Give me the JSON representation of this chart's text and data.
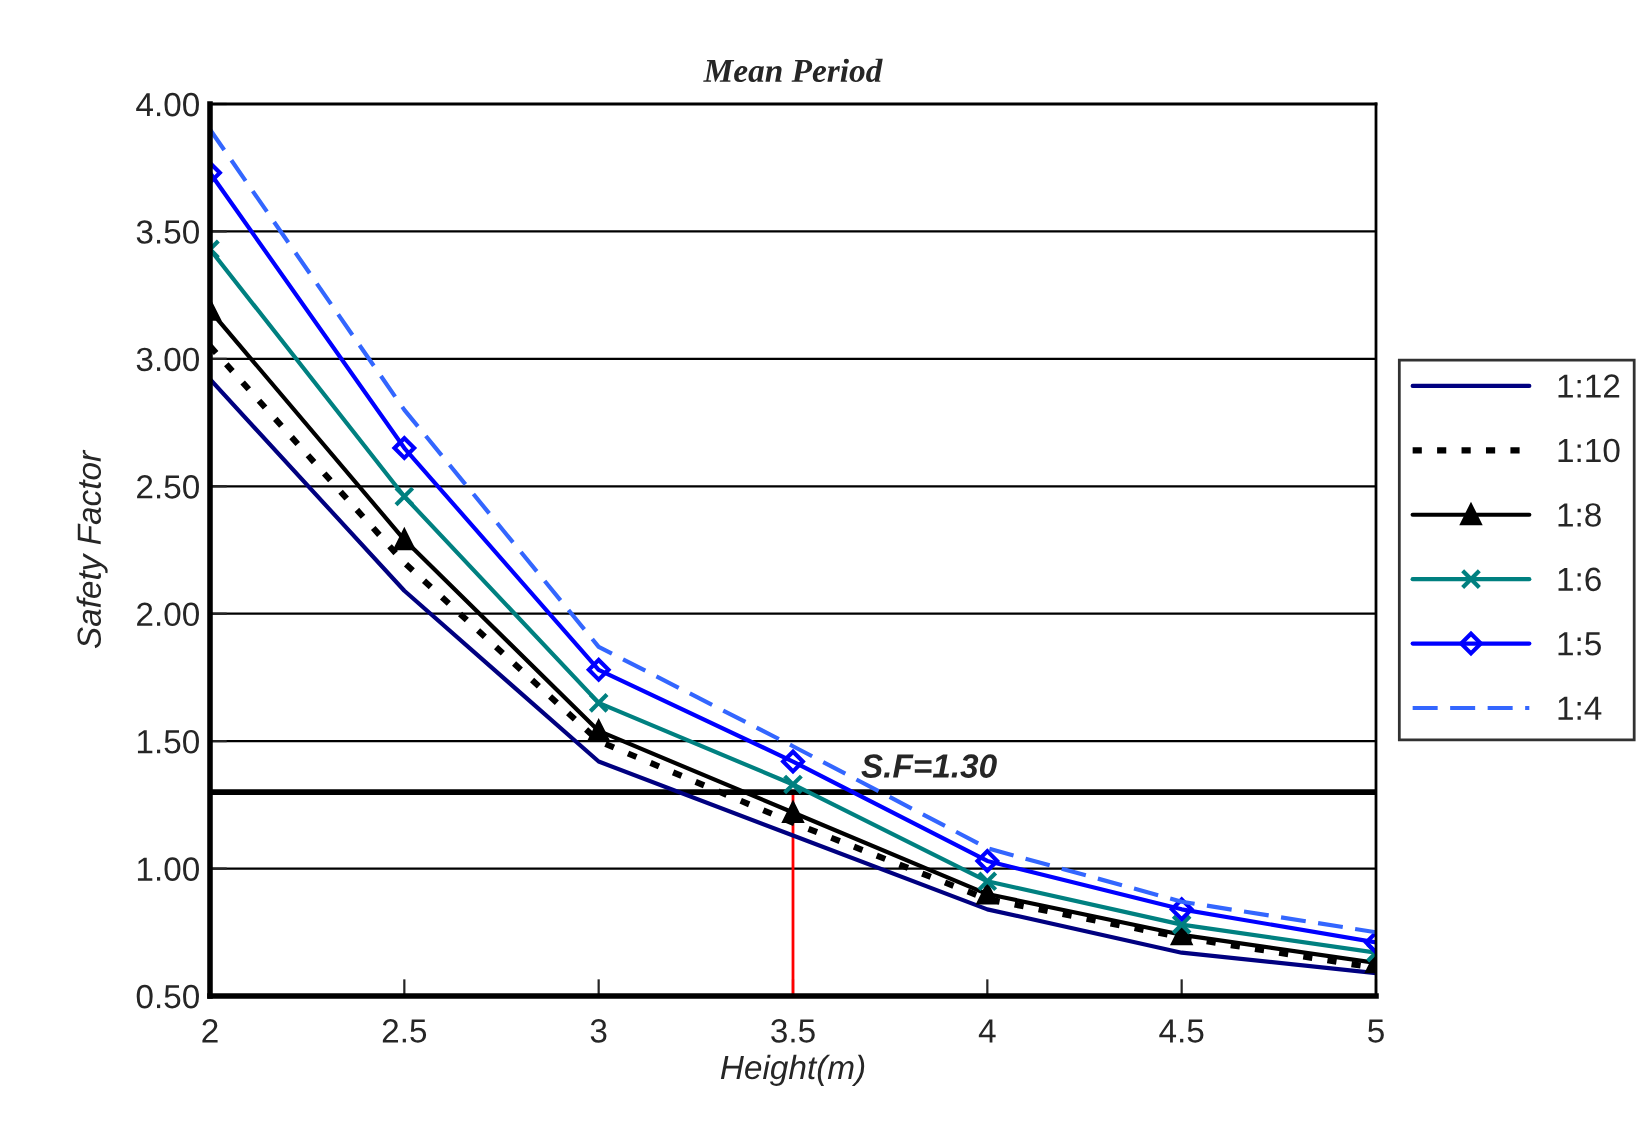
{
  "chart_data": {
    "type": "line",
    "title": "Mean Period",
    "xlabel": "Height(m)",
    "ylabel": "Safety Factor",
    "x": [
      2,
      2.5,
      3,
      3.5,
      4,
      4.5,
      5
    ],
    "series": [
      {
        "name": "1:12",
        "color": "#000080",
        "marker": "none",
        "line_style": "solid",
        "values": [
          2.92,
          2.09,
          1.42,
          1.13,
          0.84,
          0.67,
          0.59
        ]
      },
      {
        "name": "1:10",
        "color": "#000000",
        "marker": "none",
        "line_style": "dotted",
        "values": [
          3.05,
          2.2,
          1.5,
          1.18,
          0.88,
          0.73,
          0.61
        ]
      },
      {
        "name": "1:8",
        "color": "#000000",
        "marker": "triangle",
        "line_style": "solid",
        "values": [
          3.19,
          2.29,
          1.54,
          1.22,
          0.9,
          0.74,
          0.63
        ]
      },
      {
        "name": "1:6",
        "color": "#008080",
        "marker": "cross",
        "line_style": "solid",
        "values": [
          3.43,
          2.46,
          1.65,
          1.33,
          0.95,
          0.78,
          0.67
        ]
      },
      {
        "name": "1:5",
        "color": "#0000ff",
        "marker": "diamond",
        "line_style": "solid",
        "values": [
          3.73,
          2.65,
          1.78,
          1.42,
          1.03,
          0.84,
          0.71
        ]
      },
      {
        "name": "1:4",
        "color": "#3366ff",
        "marker": "none",
        "line_style": "dashed",
        "values": [
          3.9,
          2.8,
          1.87,
          1.48,
          1.08,
          0.87,
          0.75
        ]
      }
    ],
    "xlim": [
      2,
      5
    ],
    "xticks": [
      2,
      2.5,
      3,
      3.5,
      4,
      4.5,
      5
    ],
    "ylim": [
      0.5,
      4.0
    ],
    "yticks": [
      {
        "value": 0.5,
        "label": "0.50"
      },
      {
        "value": 1.0,
        "label": "1.00"
      },
      {
        "value": 1.5,
        "label": "1.50"
      },
      {
        "value": 2.0,
        "label": "2.00"
      },
      {
        "value": 2.5,
        "label": "2.50"
      },
      {
        "value": 3.0,
        "label": "3.00"
      },
      {
        "value": 3.5,
        "label": "3.50"
      },
      {
        "value": 4.0,
        "label": "4.00"
      }
    ],
    "ref_lines": [
      {
        "axis": "y",
        "value": 1.3,
        "label": "S.F=1.30",
        "color": "#000000"
      },
      {
        "axis": "x",
        "value": 3.5,
        "color": "#ff0000"
      }
    ],
    "grid": "y",
    "legend": "right"
  }
}
